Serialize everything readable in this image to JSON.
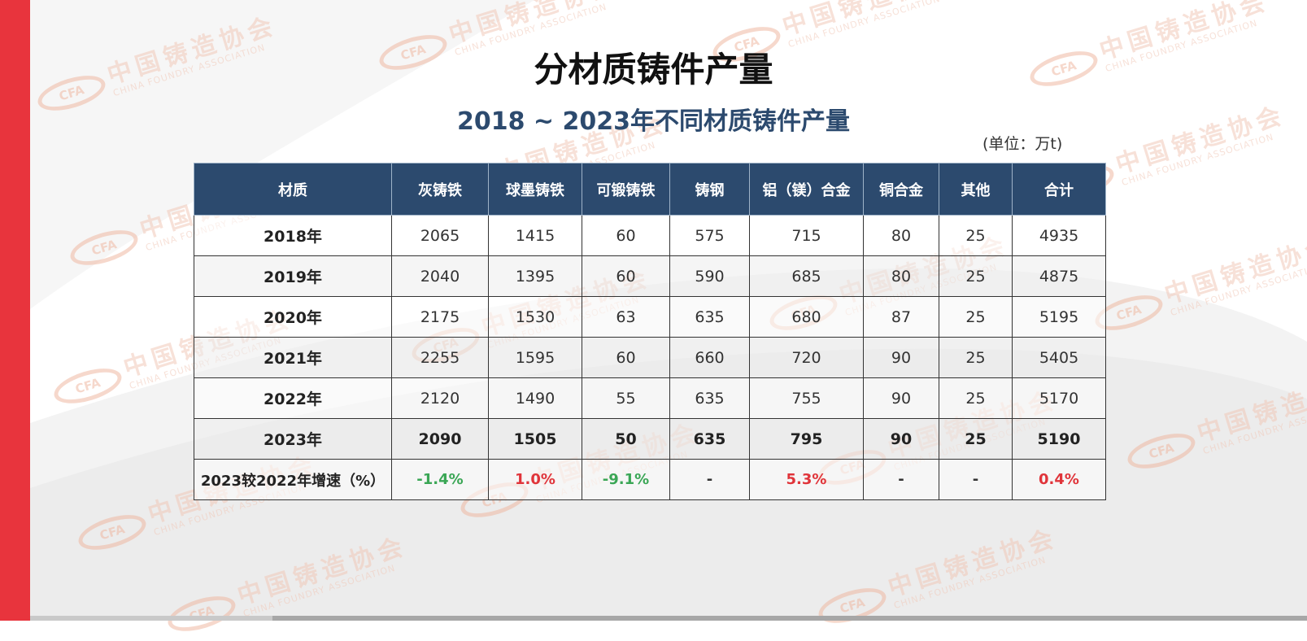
{
  "title": "分材质铸件产量",
  "subtitle": "2018 ~ 2023年不同材质铸件产量",
  "unit": "(单位：万t)",
  "watermark": {
    "logo": "CFA",
    "cn": "中国铸造协会",
    "en": "CHINA FOUNDRY ASSOCIATION"
  },
  "colors": {
    "header_bg": "#2c4a6e",
    "accent_red": "#e8343d",
    "negative_green": "#3aa655",
    "positive_red": "#e0343a"
  },
  "table": {
    "headers": [
      "材质",
      "灰铸铁",
      "球墨铸铁",
      "可锻铸铁",
      "铸钢",
      "铝（镁）合金",
      "铜合金",
      "其他",
      "合计"
    ],
    "rows": [
      {
        "label": "2018年",
        "values": [
          "2065",
          "1415",
          "60",
          "575",
          "715",
          "80",
          "25",
          "4935"
        ]
      },
      {
        "label": "2019年",
        "values": [
          "2040",
          "1395",
          "60",
          "590",
          "685",
          "80",
          "25",
          "4875"
        ]
      },
      {
        "label": "2020年",
        "values": [
          "2175",
          "1530",
          "63",
          "635",
          "680",
          "87",
          "25",
          "5195"
        ]
      },
      {
        "label": "2021年",
        "values": [
          "2255",
          "1595",
          "60",
          "660",
          "720",
          "90",
          "25",
          "5405"
        ]
      },
      {
        "label": "2022年",
        "values": [
          "2120",
          "1490",
          "55",
          "635",
          "755",
          "90",
          "25",
          "5170"
        ]
      },
      {
        "label": "2023年",
        "values": [
          "2090",
          "1505",
          "50",
          "635",
          "795",
          "90",
          "25",
          "5190"
        ]
      }
    ],
    "growth": {
      "label": "2023较2022年增速（%）",
      "values": [
        "-1.4%",
        "1.0%",
        "-9.1%",
        "-",
        "5.3%",
        "-",
        "-",
        "0.4%"
      ],
      "value_colors": [
        "#3aa655",
        "#e0343a",
        "#3aa655",
        "#333333",
        "#e0343a",
        "#333333",
        "#333333",
        "#e0343a"
      ]
    }
  }
}
